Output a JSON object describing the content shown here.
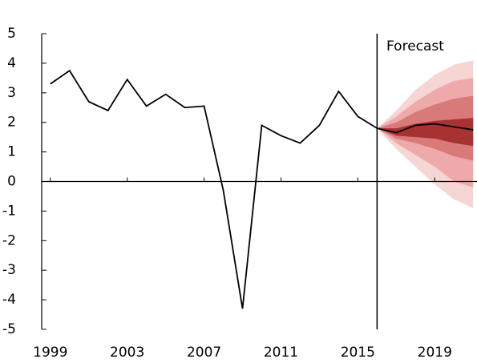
{
  "chart_data": {
    "type": "fan",
    "x": [
      1999,
      2000,
      2001,
      2002,
      2003,
      2004,
      2005,
      2006,
      2007,
      2008,
      2009,
      2010,
      2011,
      2012,
      2013,
      2014,
      2015,
      2016,
      2017,
      2018,
      2019,
      2020,
      2021
    ],
    "values": [
      3.3,
      3.75,
      2.7,
      2.4,
      3.45,
      2.55,
      2.95,
      2.5,
      2.55,
      -0.3,
      -4.3,
      1.9,
      1.55,
      1.3,
      1.9,
      3.05,
      2.2,
      1.8,
      1.65,
      1.9,
      1.95,
      1.85,
      1.75
    ],
    "color": "#000000",
    "fan_x": [
      2016,
      2017,
      2018,
      2019,
      2020,
      2021
    ],
    "fan": [
      {
        "color": "#f6d5d5",
        "lower": [
          1.8,
          1.1,
          0.5,
          -0.1,
          -0.6,
          -0.9
        ],
        "upper": [
          1.8,
          2.4,
          3.1,
          3.6,
          3.95,
          4.1
        ]
      },
      {
        "color": "#eeaaaa",
        "lower": [
          1.8,
          1.3,
          0.9,
          0.5,
          0.0,
          -0.2
        ],
        "upper": [
          1.8,
          2.2,
          2.7,
          3.1,
          3.4,
          3.5
        ]
      },
      {
        "color": "#d97a7a",
        "lower": [
          1.8,
          1.45,
          1.3,
          1.1,
          0.85,
          0.7
        ],
        "upper": [
          1.8,
          2.0,
          2.35,
          2.6,
          2.8,
          2.9
        ]
      },
      {
        "color": "#a83232",
        "lower": [
          1.8,
          1.55,
          1.5,
          1.45,
          1.3,
          1.2
        ],
        "upper": [
          1.8,
          1.8,
          1.95,
          2.05,
          2.1,
          2.15
        ]
      }
    ],
    "forecast_start": 2016,
    "annotation": "Forecast",
    "xlim": [
      1998.55,
      2021.2
    ],
    "xticks": [
      1999,
      2003,
      2007,
      2011,
      2015,
      2019
    ],
    "ylim": [
      -5,
      5
    ],
    "yticks": [
      -5,
      -4,
      -3,
      -2,
      -1,
      0,
      1,
      2,
      3,
      4,
      5
    ]
  }
}
